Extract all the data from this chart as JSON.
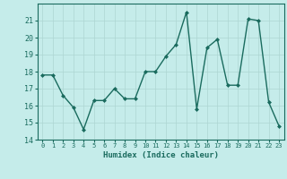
{
  "x": [
    0,
    1,
    2,
    3,
    4,
    5,
    6,
    7,
    8,
    9,
    10,
    11,
    12,
    13,
    14,
    15,
    16,
    17,
    18,
    19,
    20,
    21,
    22,
    23
  ],
  "y": [
    17.8,
    17.8,
    16.6,
    15.9,
    14.6,
    16.3,
    16.3,
    17.0,
    16.4,
    16.4,
    18.0,
    18.0,
    18.9,
    19.6,
    21.5,
    15.8,
    19.4,
    19.9,
    17.2,
    17.2,
    21.1,
    21.0,
    16.2,
    14.8
  ],
  "line_color": "#1a6b5e",
  "marker": "D",
  "markersize": 2.0,
  "linewidth": 1.0,
  "xlabel": "Humidex (Indice chaleur)",
  "ylim": [
    14,
    22
  ],
  "xlim": [
    -0.5,
    23.5
  ],
  "yticks": [
    14,
    15,
    16,
    17,
    18,
    19,
    20,
    21
  ],
  "xticks": [
    0,
    1,
    2,
    3,
    4,
    5,
    6,
    7,
    8,
    9,
    10,
    11,
    12,
    13,
    14,
    15,
    16,
    17,
    18,
    19,
    20,
    21,
    22,
    23
  ],
  "bg_color": "#c5ecea",
  "grid_color": "#aed6d3",
  "tick_color": "#1a6b5e",
  "label_color": "#1a6b5e",
  "xlabel_fontsize": 6.5,
  "xlabel_fontweight": "bold",
  "ytick_fontsize": 6.0,
  "xtick_fontsize": 5.0
}
